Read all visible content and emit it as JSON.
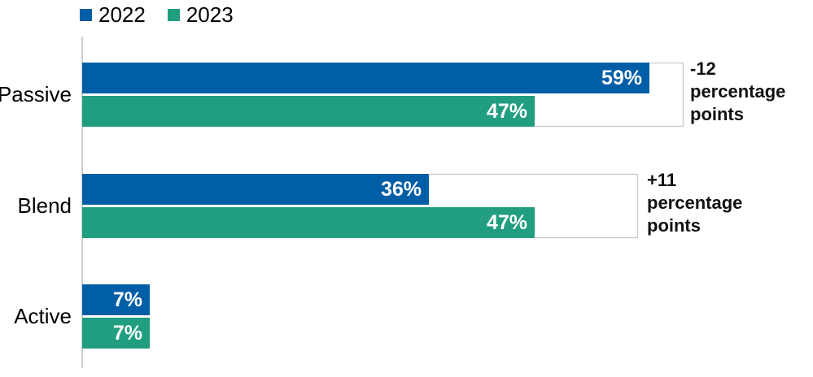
{
  "chart_data": {
    "type": "bar",
    "orientation": "horizontal",
    "categories": [
      "Passive",
      "Blend",
      "Active"
    ],
    "series": [
      {
        "name": "2022",
        "color": "#005ea6",
        "values": [
          59,
          36,
          7
        ],
        "display_values": [
          "59%",
          "36%",
          "7%"
        ]
      },
      {
        "name": "2023",
        "color": "#219e80",
        "values": [
          47,
          47,
          7
        ],
        "display_values": [
          "47%",
          "47%",
          "7%"
        ]
      }
    ],
    "annotations": [
      {
        "target_category": "Passive",
        "text": "-12 percentage points",
        "lines": [
          "-12",
          "percentage",
          "points"
        ]
      },
      {
        "target_category": "Blend",
        "text": "+11 percentage points",
        "lines": [
          "+11",
          "percentage",
          "points"
        ]
      }
    ],
    "value_format": "percent",
    "xlim": [
      0,
      76
    ],
    "grid": false,
    "legend_position": "top-left",
    "axis_color": "#cfcfcf",
    "bracket_color": "#c9c9c9",
    "category_label_color": "#000000",
    "value_label_color": "#ffffff",
    "annotation_color": "#111111"
  }
}
